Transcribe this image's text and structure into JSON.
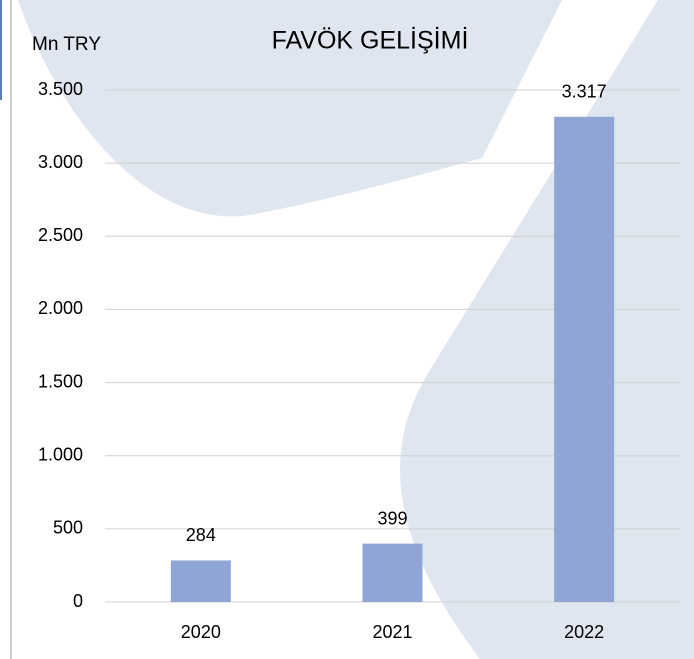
{
  "chart_data": {
    "type": "bar",
    "title": "FAVÖK GELİŞİMİ",
    "y_label": "Mn TRY",
    "categories": [
      "2020",
      "2021",
      "2022"
    ],
    "values": [
      284,
      399,
      3317
    ],
    "value_labels": [
      "284",
      "399",
      "3.317"
    ],
    "color": "#8fa5d6",
    "ylim": [
      0,
      3500
    ],
    "yticks": [
      0,
      500,
      {
        "value": 1000,
        "label": "1.000"
      },
      {
        "value": 1500,
        "label": "1.500"
      },
      {
        "value": 2000,
        "label": "2.000"
      },
      {
        "value": 2500,
        "label": "2.500"
      },
      {
        "value": 3000,
        "label": "3.000"
      },
      {
        "value": 3500,
        "label": "3.500"
      }
    ],
    "grid": true
  }
}
